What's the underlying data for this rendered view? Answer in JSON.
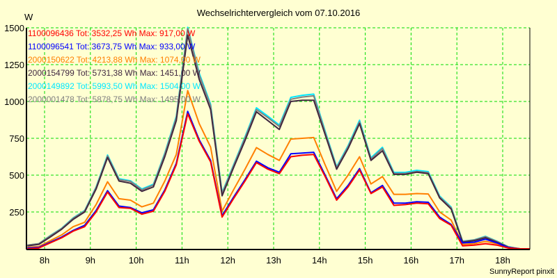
{
  "chart_data": {
    "type": "line",
    "title": "Wechselrichtervergleich vom 07.10.2016",
    "ylabel": "W",
    "xlabel": "",
    "footer": "SunnyReport pinxit",
    "ylim": [
      0,
      1500
    ],
    "xlim": [
      7.6,
      18.6
    ],
    "yticks": [
      250,
      500,
      750,
      1000,
      1250,
      1500
    ],
    "ytick_labels": [
      "250",
      "500",
      "750",
      "1000",
      "1250",
      "1500"
    ],
    "xticks": [
      8,
      9,
      10,
      11,
      12,
      13,
      14,
      15,
      16,
      17,
      18
    ],
    "xtick_labels": [
      "8h",
      "9h",
      "10h",
      "11h",
      "12h",
      "13h",
      "14h",
      "15h",
      "16h",
      "17h",
      "18h"
    ],
    "grid": true,
    "legend_position": "top-left",
    "x_start": 7.625,
    "x_step": 0.25,
    "series": [
      {
        "name": "1100096436",
        "legend": "1100096436 Tot: 3532,25 Wh Max: 917,00 W",
        "color": "#FF0000",
        "values": [
          0,
          5,
          40,
          75,
          120,
          150,
          250,
          385,
          280,
          275,
          235,
          255,
          390,
          570,
          917,
          730,
          590,
          215,
          340,
          460,
          585,
          540,
          510,
          625,
          635,
          640,
          490,
          330,
          420,
          535,
          375,
          420,
          295,
          300,
          310,
          305,
          205,
          160,
          20,
          25,
          35,
          25,
          5,
          0
        ]
      },
      {
        "name": "1100096541",
        "legend": "1100096541 Tot: 3673,75 Wh Max: 933,00 W",
        "color": "#0000FF",
        "values": [
          5,
          10,
          45,
          80,
          125,
          160,
          260,
          395,
          290,
          280,
          245,
          265,
          400,
          580,
          933,
          740,
          600,
          225,
          350,
          470,
          595,
          550,
          520,
          645,
          650,
          655,
          500,
          340,
          430,
          545,
          380,
          430,
          310,
          310,
          320,
          316,
          215,
          165,
          40,
          45,
          65,
          40,
          8,
          0
        ]
      },
      {
        "name": "2000150622",
        "legend": "2000150622 Tot: 4213,88 Wh Max: 1074,00 W",
        "color": "#FF8000",
        "values": [
          10,
          15,
          55,
          95,
          150,
          180,
          300,
          455,
          340,
          330,
          285,
          310,
          460,
          640,
          1074,
          850,
          690,
          255,
          400,
          540,
          687,
          640,
          600,
          745,
          750,
          755,
          570,
          390,
          500,
          625,
          440,
          490,
          370,
          370,
          375,
          372,
          250,
          195,
          30,
          35,
          50,
          35,
          8,
          0
        ]
      },
      {
        "name": "2000154799",
        "legend": "2000154799 Tot: 5731,38 Wh Max: 1451,00 W",
        "color": "#402840",
        "values": [
          20,
          30,
          80,
          133,
          200,
          250,
          405,
          620,
          460,
          445,
          390,
          420,
          625,
          870,
          1451,
          1150,
          945,
          360,
          550,
          735,
          930,
          870,
          810,
          1000,
          1008,
          1008,
          775,
          540,
          680,
          850,
          600,
          665,
          505,
          505,
          520,
          510,
          345,
          270,
          45,
          55,
          75,
          45,
          10,
          0
        ]
      },
      {
        "name": "2000149892",
        "legend": "2000149892 Tot: 5993,50 Wh Max: 1504,00 W",
        "color": "#00E8FF",
        "values": [
          25,
          35,
          90,
          140,
          210,
          260,
          420,
          637,
          476,
          462,
          406,
          438,
          650,
          900,
          1504,
          1193,
          981,
          382,
          570,
          760,
          957,
          900,
          840,
          1028,
          1042,
          1050,
          800,
          557,
          700,
          873,
          618,
          689,
          519,
          519,
          533,
          524,
          358,
          283,
          52,
          61,
          85,
          52,
          14,
          0
        ]
      },
      {
        "name": "2000001478",
        "legend": "2000001478 Tot: 5878,75 Wh Max: 1495,00 W",
        "color": "#808080",
        "values": [
          25,
          35,
          88,
          138,
          207,
          257,
          415,
          630,
          470,
          457,
          400,
          432,
          643,
          890,
          1495,
          1180,
          970,
          375,
          563,
          752,
          945,
          890,
          830,
          1015,
          1030,
          1038,
          790,
          550,
          692,
          862,
          610,
          680,
          512,
          512,
          525,
          517,
          352,
          278,
          50,
          60,
          82,
          50,
          13,
          0
        ]
      }
    ]
  }
}
